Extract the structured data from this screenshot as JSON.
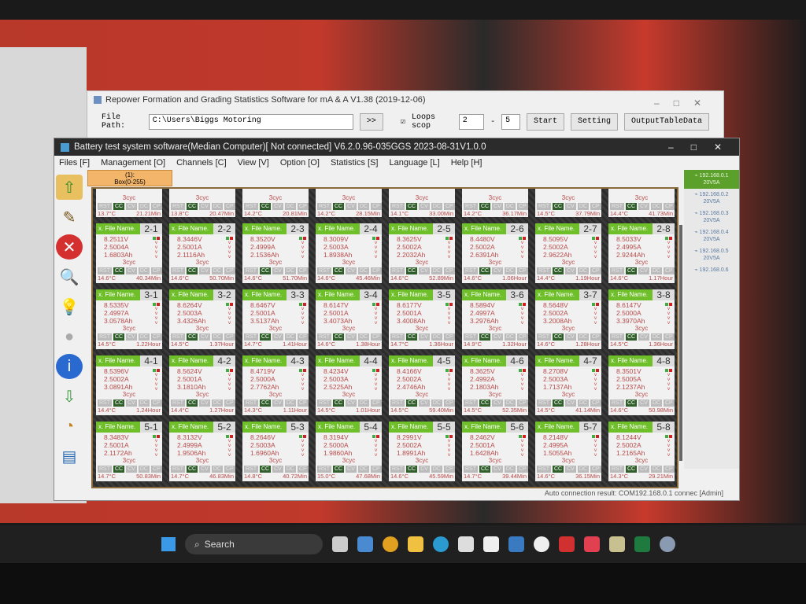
{
  "repower": {
    "title": "Repower Formation and Grading Statistics Software for mA & A  V1.38 (2019-12-06)",
    "file_path_label": "File Path:",
    "file_path": "C:\\Users\\Biggs Motoring",
    "browse": ">>",
    "loops_label": "Loops scop",
    "loops_checked": true,
    "loop_from": "2",
    "loop_sep": "-",
    "loop_to": "5",
    "start": "Start",
    "setting": "Setting",
    "output": "OutputTableData"
  },
  "main": {
    "title": "Battery test system software(Median Computer)[ Not connected] V6.2.0.96-035GGS 2023-08-31V1.0.0",
    "menu": [
      "Files [F]",
      "Management [O]",
      "Channels [C]",
      "View [V]",
      "Option [O]",
      "Statistics [S]",
      "Language [L]",
      "Help [H]"
    ],
    "box_tab": {
      "line1": "(1):",
      "line2": "Box(0-255)"
    },
    "status": "Auto connection result: COM192.168.0.1 connec  [Admin]"
  },
  "file_name_label": "x. File Name.",
  "modes": [
    "RST",
    "CC",
    "CV",
    "DC",
    "CP"
  ],
  "active_mode": "CC",
  "colors": {
    "header_green": "#6fbf2a",
    "active_mode": "#2f5e2a",
    "value_red": "#b84a4a"
  },
  "channels_row1": [
    {
      "cyc": "3cyc",
      "temp": "13.7°C",
      "time": "21.21Min"
    },
    {
      "cyc": "3cyc",
      "temp": "13.8°C",
      "time": "20.47Min"
    },
    {
      "cyc": "3cyc",
      "temp": "14.2°C",
      "time": "20.81Min"
    },
    {
      "cyc": "3cyc",
      "temp": "14.2°C",
      "time": "28.15Min"
    },
    {
      "cyc": "3cyc",
      "temp": "14.1°C",
      "time": "33.00Min"
    },
    {
      "cyc": "3cyc",
      "temp": "14.2°C",
      "time": "36.17Min"
    },
    {
      "cyc": "3cyc",
      "temp": "14.5°C",
      "time": "37.79Min"
    },
    {
      "cyc": "3cyc",
      "temp": "14.4°C",
      "time": "41.73Min"
    }
  ],
  "channels": [
    {
      "id": "2-1",
      "v": "8.2511V",
      "a": "2.5004A",
      "ah": "1.6803Ah",
      "cyc": "3cyc",
      "temp": "14.6°C",
      "time": "40.34Min"
    },
    {
      "id": "2-2",
      "v": "8.3446V",
      "a": "2.5001A",
      "ah": "2.1116Ah",
      "cyc": "3cyc",
      "temp": "14.6°C",
      "time": "50.70Min"
    },
    {
      "id": "2-3",
      "v": "8.3520V",
      "a": "2.4999A",
      "ah": "2.1536Ah",
      "cyc": "3cyc",
      "temp": "14.6°C",
      "time": "51.70Min"
    },
    {
      "id": "2-4",
      "v": "8.3009V",
      "a": "2.5003A",
      "ah": "1.8938Ah",
      "cyc": "3cyc",
      "temp": "14.6°C",
      "time": "45.46Min"
    },
    {
      "id": "2-5",
      "v": "8.3625V",
      "a": "2.5002A",
      "ah": "2.2032Ah",
      "cyc": "3cyc",
      "temp": "14.6°C",
      "time": "52.89Min"
    },
    {
      "id": "2-6",
      "v": "8.4480V",
      "a": "2.5002A",
      "ah": "2.6391Ah",
      "cyc": "3cyc",
      "temp": "14.6°C",
      "time": "1.06Hour"
    },
    {
      "id": "2-7",
      "v": "8.5095V",
      "a": "2.5002A",
      "ah": "2.9622Ah",
      "cyc": "3cyc",
      "temp": "14.4°C",
      "time": "1.19Hour"
    },
    {
      "id": "2-8",
      "v": "8.5033V",
      "a": "2.4995A",
      "ah": "2.9244Ah",
      "cyc": "3cyc",
      "temp": "14.6°C",
      "time": "1.17Hour"
    },
    {
      "id": "3-1",
      "v": "8.5335V",
      "a": "2.4997A",
      "ah": "3.0578Ah",
      "cyc": "3cyc",
      "temp": "14.5°C",
      "time": "1.22Hour"
    },
    {
      "id": "3-2",
      "v": "8.6264V",
      "a": "2.5003A",
      "ah": "3.4326Ah",
      "cyc": "3cyc",
      "temp": "14.5°C",
      "time": "1.37Hour"
    },
    {
      "id": "3-3",
      "v": "8.6467V",
      "a": "2.5001A",
      "ah": "3.5137Ah",
      "cyc": "3cyc",
      "temp": "14.7°C",
      "time": "1.41Hour"
    },
    {
      "id": "3-4",
      "v": "8.6147V",
      "a": "2.5001A",
      "ah": "3.4073Ah",
      "cyc": "3cyc",
      "temp": "14.6°C",
      "time": "1.38Hour"
    },
    {
      "id": "3-5",
      "v": "8.6177V",
      "a": "2.5001A",
      "ah": "3.4008Ah",
      "cyc": "3cyc",
      "temp": "14.7°C",
      "time": "1.36Hour"
    },
    {
      "id": "3-6",
      "v": "8.5894V",
      "a": "2.4997A",
      "ah": "3.2976Ah",
      "cyc": "3cyc",
      "temp": "14.9°C",
      "time": "1.32Hour"
    },
    {
      "id": "3-7",
      "v": "8.5648V",
      "a": "2.5002A",
      "ah": "3.2008Ah",
      "cyc": "3cyc",
      "temp": "14.6°C",
      "time": "1.28Hour"
    },
    {
      "id": "3-8",
      "v": "8.6147V",
      "a": "2.5000A",
      "ah": "3.3970Ah",
      "cyc": "3cyc",
      "temp": "14.5°C",
      "time": "1.36Hour"
    },
    {
      "id": "4-1",
      "v": "8.5396V",
      "a": "2.5002A",
      "ah": "3.0891Ah",
      "cyc": "3cyc",
      "temp": "14.4°C",
      "time": "1.24Hour"
    },
    {
      "id": "4-2",
      "v": "8.5624V",
      "a": "2.5001A",
      "ah": "3.1810Ah",
      "cyc": "3cyc",
      "temp": "14.4°C",
      "time": "1.27Hour"
    },
    {
      "id": "4-3",
      "v": "8.4719V",
      "a": "2.5000A",
      "ah": "2.7762Ah",
      "cyc": "3cyc",
      "temp": "14.3°C",
      "time": "1.11Hour"
    },
    {
      "id": "4-4",
      "v": "8.4234V",
      "a": "2.5003A",
      "ah": "2.5225Ah",
      "cyc": "3cyc",
      "temp": "14.5°C",
      "time": "1.01Hour"
    },
    {
      "id": "4-5",
      "v": "8.4166V",
      "a": "2.5002A",
      "ah": "2.4746Ah",
      "cyc": "3cyc",
      "temp": "14.5°C",
      "time": "59.40Min"
    },
    {
      "id": "4-6",
      "v": "8.3625V",
      "a": "2.4992A",
      "ah": "2.1803Ah",
      "cyc": "3cyc",
      "temp": "14.5°C",
      "time": "52.35Min"
    },
    {
      "id": "4-7",
      "v": "8.2708V",
      "a": "2.5003A",
      "ah": "1.7137Ah",
      "cyc": "3cyc",
      "temp": "14.5°C",
      "time": "41.14Min"
    },
    {
      "id": "4-8",
      "v": "8.3501V",
      "a": "2.5005A",
      "ah": "2.1237Ah",
      "cyc": "3cyc",
      "temp": "14.6°C",
      "time": "50.98Min"
    },
    {
      "id": "5-1",
      "v": "8.3483V",
      "a": "2.5001A",
      "ah": "2.1172Ah",
      "cyc": "3cyc",
      "temp": "14.7°C",
      "time": "50.83Min"
    },
    {
      "id": "5-2",
      "v": "8.3132V",
      "a": "2.4999A",
      "ah": "1.9506Ah",
      "cyc": "3cyc",
      "temp": "14.7°C",
      "time": "46.83Min"
    },
    {
      "id": "5-3",
      "v": "8.2646V",
      "a": "2.5003A",
      "ah": "1.6960Ah",
      "cyc": "3cyc",
      "temp": "14.8°C",
      "time": "40.72Min"
    },
    {
      "id": "5-4",
      "v": "8.3194V",
      "a": "2.5000A",
      "ah": "1.9860Ah",
      "cyc": "3cyc",
      "temp": "15.0°C",
      "time": "47.68Min"
    },
    {
      "id": "5-5",
      "v": "8.2991V",
      "a": "2.5002A",
      "ah": "1.8991Ah",
      "cyc": "3cyc",
      "temp": "14.6°C",
      "time": "45.59Min"
    },
    {
      "id": "5-6",
      "v": "8.2462V",
      "a": "2.5001A",
      "ah": "1.6428Ah",
      "cyc": "3cyc",
      "temp": "14.7°C",
      "time": "39.44Min"
    },
    {
      "id": "5-7",
      "v": "8.2148V",
      "a": "2.4995A",
      "ah": "1.5055Ah",
      "cyc": "3cyc",
      "temp": "14.6°C",
      "time": "36.15Min"
    },
    {
      "id": "5-8",
      "v": "8.1244V",
      "a": "2.5002A",
      "ah": "1.2165Ah",
      "cyc": "3cyc",
      "temp": "14.3°C",
      "time": "29.21Min"
    }
  ],
  "devices": [
    {
      "ip": "192.168.0.1",
      "spec": "20V5A",
      "selected": true
    },
    {
      "ip": "192.168.0.2",
      "spec": "20V5A"
    },
    {
      "ip": "192.168.0.3",
      "spec": "20V5A"
    },
    {
      "ip": "192.168.0.4",
      "spec": "20V5A"
    },
    {
      "ip": "192.168.0.5",
      "spec": "20V5A"
    },
    {
      "ip": "192.168.0.6",
      "spec": ""
    }
  ],
  "taskbar": {
    "search": "Search"
  }
}
